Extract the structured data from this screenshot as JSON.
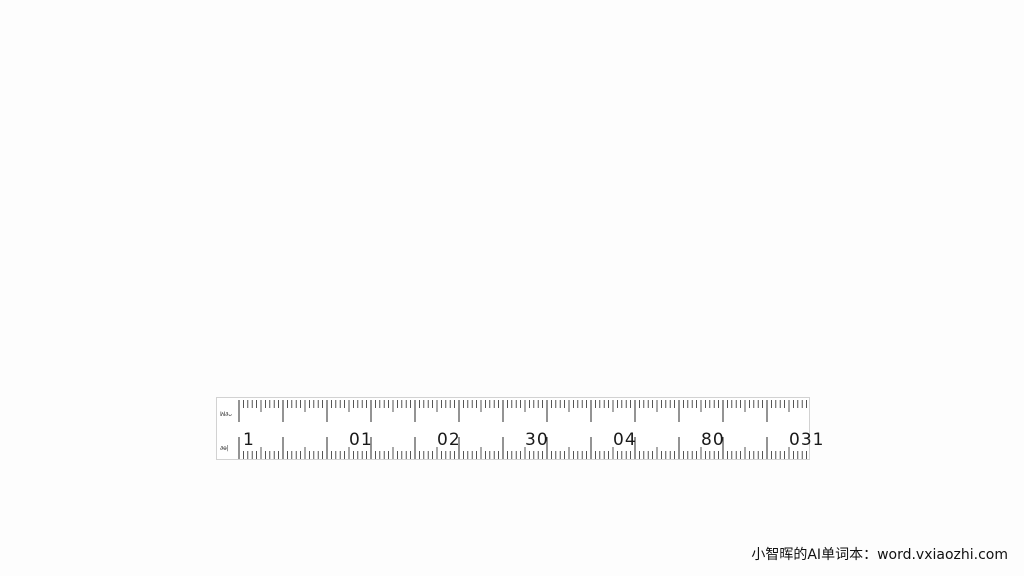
{
  "ruler": {
    "top_mark": "ꟽ∂ᴗ",
    "bottom_mark": "∂ɵ|",
    "numbers": [
      "1",
      "01",
      "02",
      "30",
      "04",
      "80",
      "031"
    ],
    "tick_color": "#2a2a2a"
  },
  "watermark": {
    "text": "小智晖的AI单词本：word.vxiaozhi.com"
  }
}
